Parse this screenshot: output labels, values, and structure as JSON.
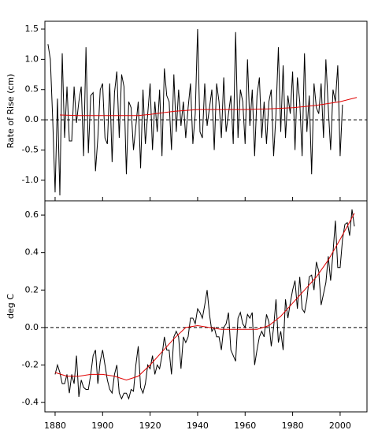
{
  "chart_data": [
    {
      "type": "line",
      "ylabel": "Rate of Rise (cm)",
      "xlim": [
        1875.7,
        2011.3
      ],
      "ylim": [
        -1.34,
        1.63
      ],
      "yticks": [
        {
          "value": -1.0,
          "label": "-1.0"
        },
        -0.5,
        {
          "value": 0.0,
          "label": "0.0"
        },
        0.5,
        {
          "value": 1.0,
          "label": "1.0"
        },
        1.5
      ],
      "hline": 0,
      "series": [
        {
          "color": "#000000",
          "x": [
            1877,
            1878,
            1879,
            1880,
            1881,
            1882,
            1883,
            1884,
            1885,
            1886,
            1887,
            1888,
            1889,
            1890,
            1891,
            1892,
            1893,
            1894,
            1895,
            1896,
            1897,
            1898,
            1899,
            1900,
            1901,
            1902,
            1903,
            1904,
            1905,
            1906,
            1907,
            1908,
            1909,
            1910,
            1911,
            1912,
            1913,
            1914,
            1915,
            1916,
            1917,
            1918,
            1919,
            1920,
            1921,
            1922,
            1923,
            1924,
            1925,
            1926,
            1927,
            1928,
            1929,
            1930,
            1931,
            1932,
            1933,
            1934,
            1935,
            1936,
            1937,
            1938,
            1939,
            1940,
            1941,
            1942,
            1943,
            1944,
            1945,
            1946,
            1947,
            1948,
            1949,
            1950,
            1951,
            1952,
            1953,
            1954,
            1955,
            1956,
            1957,
            1958,
            1959,
            1960,
            1961,
            1962,
            1963,
            1964,
            1965,
            1966,
            1967,
            1968,
            1969,
            1970,
            1971,
            1972,
            1973,
            1974,
            1975,
            1976,
            1977,
            1978,
            1979,
            1980,
            1981,
            1982,
            1983,
            1984,
            1985,
            1986,
            1987,
            1988,
            1989,
            1990,
            1991,
            1992,
            1993,
            1994,
            1995,
            1996,
            1997,
            1998,
            1999,
            2000,
            2001
          ],
          "values": [
            1.25,
            1.0,
            0.0,
            -1.2,
            0.35,
            -1.25,
            1.1,
            -0.3,
            0.55,
            -0.35,
            -0.35,
            0.55,
            -0.05,
            0.3,
            0.55,
            -0.6,
            1.2,
            -0.55,
            0.4,
            0.45,
            -0.85,
            -0.3,
            0.5,
            0.6,
            -0.3,
            -0.4,
            0.6,
            -0.7,
            0.45,
            0.8,
            -0.3,
            0.75,
            0.55,
            -0.9,
            0.3,
            0.2,
            -0.5,
            -0.1,
            0.3,
            -0.8,
            0.5,
            -0.4,
            0.1,
            0.6,
            -0.5,
            0.3,
            -0.2,
            0.5,
            -0.6,
            0.85,
            0.4,
            0.3,
            -0.5,
            0.75,
            -0.2,
            0.5,
            -0.1,
            0.3,
            -0.3,
            0.2,
            0.6,
            -0.4,
            0.1,
            1.5,
            -0.2,
            -0.3,
            0.6,
            -0.1,
            0.2,
            0.5,
            -0.5,
            0.6,
            0.3,
            -0.3,
            0.7,
            -0.2,
            0.1,
            0.4,
            -0.4,
            1.45,
            -0.3,
            0.5,
            0.3,
            -0.4,
            1.0,
            -0.1,
            0.5,
            -0.6,
            0.4,
            0.7,
            -0.3,
            0.3,
            -0.4,
            0.3,
            0.5,
            -0.6,
            0.1,
            1.2,
            -0.2,
            0.9,
            -0.3,
            0.4,
            0.1,
            0.8,
            -0.5,
            0.7,
            0.3,
            -0.6,
            1.1,
            -0.2,
            0.4,
            -0.9,
            0.6,
            0.2,
            0.1,
            0.6,
            -0.3,
            1.0,
            0.2,
            -0.5,
            0.5,
            0.3,
            0.9,
            -0.6,
            0.25
          ]
        },
        {
          "color": "#e00000",
          "x": [
            1882,
            1890,
            1900,
            1910,
            1915,
            1920,
            1930,
            1940,
            1950,
            1960,
            1970,
            1980,
            1990,
            2000,
            2007
          ],
          "values": [
            0.08,
            0.07,
            0.07,
            0.07,
            0.07,
            0.09,
            0.14,
            0.17,
            0.17,
            0.17,
            0.18,
            0.2,
            0.24,
            0.3,
            0.37
          ]
        }
      ]
    },
    {
      "type": "line",
      "ylabel": "deg C",
      "xlim": [
        1875.7,
        2011.3
      ],
      "ylim": [
        -0.45,
        0.676
      ],
      "xticks": [
        1880,
        1900,
        1920,
        1940,
        1960,
        1980,
        2000
      ],
      "yticks": [
        -0.4,
        -0.2,
        {
          "value": 0.0,
          "label": "0.0"
        },
        0.2,
        0.4,
        0.6
      ],
      "hline": 0,
      "series": [
        {
          "color": "#000000",
          "x": [
            1880,
            1881,
            1882,
            1883,
            1884,
            1885,
            1886,
            1887,
            1888,
            1889,
            1890,
            1891,
            1892,
            1893,
            1894,
            1895,
            1896,
            1897,
            1898,
            1899,
            1900,
            1901,
            1902,
            1903,
            1904,
            1905,
            1906,
            1907,
            1908,
            1909,
            1910,
            1911,
            1912,
            1913,
            1914,
            1915,
            1916,
            1917,
            1918,
            1919,
            1920,
            1921,
            1922,
            1923,
            1924,
            1925,
            1926,
            1927,
            1928,
            1929,
            1930,
            1931,
            1932,
            1933,
            1934,
            1935,
            1936,
            1937,
            1938,
            1939,
            1940,
            1941,
            1942,
            1943,
            1944,
            1945,
            1946,
            1947,
            1948,
            1949,
            1950,
            1951,
            1952,
            1953,
            1954,
            1955,
            1956,
            1957,
            1958,
            1959,
            1960,
            1961,
            1962,
            1963,
            1964,
            1965,
            1966,
            1967,
            1968,
            1969,
            1970,
            1971,
            1972,
            1973,
            1974,
            1975,
            1976,
            1977,
            1978,
            1979,
            1980,
            1981,
            1982,
            1983,
            1984,
            1985,
            1986,
            1987,
            1988,
            1989,
            1990,
            1991,
            1992,
            1993,
            1994,
            1995,
            1996,
            1997,
            1998,
            1999,
            2000,
            2001,
            2002,
            2003,
            2004,
            2005,
            2006
          ],
          "values": [
            -0.25,
            -0.2,
            -0.24,
            -0.3,
            -0.3,
            -0.25,
            -0.35,
            -0.25,
            -0.3,
            -0.15,
            -0.37,
            -0.28,
            -0.32,
            -0.33,
            -0.33,
            -0.25,
            -0.15,
            -0.12,
            -0.3,
            -0.18,
            -0.12,
            -0.2,
            -0.28,
            -0.33,
            -0.35,
            -0.25,
            -0.2,
            -0.35,
            -0.38,
            -0.35,
            -0.35,
            -0.38,
            -0.33,
            -0.34,
            -0.2,
            -0.1,
            -0.32,
            -0.35,
            -0.3,
            -0.2,
            -0.22,
            -0.15,
            -0.25,
            -0.2,
            -0.22,
            -0.15,
            -0.05,
            -0.12,
            -0.12,
            -0.25,
            -0.05,
            -0.02,
            -0.05,
            -0.22,
            -0.05,
            -0.08,
            -0.05,
            0.05,
            0.05,
            0.02,
            0.1,
            0.08,
            0.05,
            0.12,
            0.2,
            0.07,
            -0.02,
            0.0,
            -0.05,
            -0.05,
            -0.12,
            0.0,
            0.02,
            0.08,
            -0.12,
            -0.15,
            -0.18,
            0.05,
            0.08,
            0.02,
            0.0,
            0.07,
            0.05,
            0.08,
            -0.2,
            -0.12,
            -0.05,
            -0.02,
            -0.05,
            0.07,
            0.03,
            -0.1,
            0.0,
            0.15,
            -0.08,
            -0.02,
            -0.12,
            0.15,
            0.05,
            0.13,
            0.2,
            0.25,
            0.1,
            0.27,
            0.1,
            0.08,
            0.15,
            0.27,
            0.28,
            0.2,
            0.35,
            0.3,
            0.12,
            0.18,
            0.24,
            0.38,
            0.25,
            0.4,
            0.57,
            0.32,
            0.32,
            0.47,
            0.55,
            0.56,
            0.49,
            0.63,
            0.54
          ]
        },
        {
          "color": "#e00000",
          "x": [
            1880,
            1885,
            1890,
            1895,
            1900,
            1905,
            1910,
            1915,
            1920,
            1925,
            1930,
            1935,
            1940,
            1945,
            1950,
            1955,
            1960,
            1965,
            1970,
            1975,
            1980,
            1985,
            1990,
            1995,
            2000,
            2006
          ],
          "values": [
            -0.24,
            -0.26,
            -0.26,
            -0.25,
            -0.25,
            -0.26,
            -0.28,
            -0.26,
            -0.2,
            -0.13,
            -0.06,
            0.0,
            0.01,
            0.0,
            -0.01,
            -0.01,
            -0.01,
            -0.01,
            0.01,
            0.06,
            0.13,
            0.2,
            0.27,
            0.36,
            0.47,
            0.61
          ]
        }
      ]
    }
  ]
}
